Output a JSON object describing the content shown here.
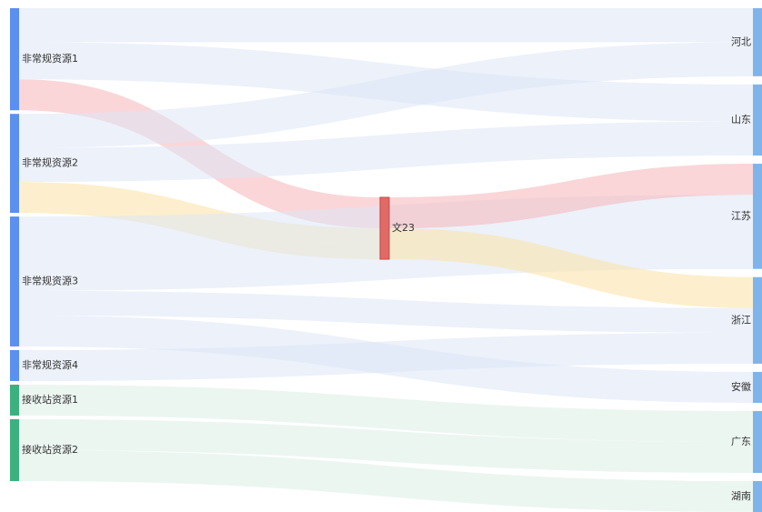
{
  "chart_data": {
    "type": "sankey",
    "nodes": [
      {
        "id": "s1",
        "label": "非常规资源1",
        "color": "#5b8ff0",
        "column": "left"
      },
      {
        "id": "s2",
        "label": "非常规资源2",
        "color": "#5b8ff0",
        "column": "left"
      },
      {
        "id": "s3",
        "label": "非常规资源3",
        "color": "#5b8ff0",
        "column": "left"
      },
      {
        "id": "s4",
        "label": "非常规资源4",
        "color": "#5b8ff0",
        "column": "left"
      },
      {
        "id": "j1",
        "label": "接收站资源1",
        "color": "#3db07f",
        "column": "left"
      },
      {
        "id": "j2",
        "label": "接收站资源2",
        "color": "#3db07f",
        "column": "left"
      },
      {
        "id": "w23",
        "label": "文23",
        "color": "#e06a66",
        "column": "middle"
      },
      {
        "id": "hebei",
        "label": "河北",
        "color": "#7fb4ea",
        "column": "right"
      },
      {
        "id": "shandong",
        "label": "山东",
        "color": "#7fb4ea",
        "column": "right"
      },
      {
        "id": "jiangsu",
        "label": "江苏",
        "color": "#7fb4ea",
        "column": "right"
      },
      {
        "id": "zhejiang",
        "label": "浙江",
        "color": "#7fb4ea",
        "column": "right"
      },
      {
        "id": "anhui",
        "label": "安徽",
        "color": "#7fb4ea",
        "column": "right"
      },
      {
        "id": "guangdong",
        "label": "广东",
        "color": "#7fb4ea",
        "column": "right"
      },
      {
        "id": "hunan",
        "label": "湖南",
        "color": "#7fb4ea",
        "column": "right"
      }
    ],
    "links": [
      {
        "source": "s1",
        "target": "w23",
        "value": 1.0,
        "color": "#f5b5b8"
      },
      {
        "source": "s1",
        "target": "hebei",
        "value": 1.1,
        "color": "#dde6f5"
      },
      {
        "source": "s1",
        "target": "shandong",
        "value": 1.2,
        "color": "#dde6f5"
      },
      {
        "source": "s2",
        "target": "w23",
        "value": 1.0,
        "color": "#fbe1a4"
      },
      {
        "source": "s2",
        "target": "hebei",
        "value": 1.1,
        "color": "#dde6f5"
      },
      {
        "source": "s2",
        "target": "shandong",
        "value": 1.1,
        "color": "#dde6f5"
      },
      {
        "source": "s3",
        "target": "jiangsu",
        "value": 1.2,
        "color": "#dde6f5"
      },
      {
        "source": "s3",
        "target": "jiangsu",
        "value": 1.2,
        "color": "#dde6f5"
      },
      {
        "source": "s3",
        "target": "zhejiang",
        "value": 0.8,
        "color": "#dde6f5"
      },
      {
        "source": "s3",
        "target": "anhui",
        "value": 1.0,
        "color": "#dde6f5"
      },
      {
        "source": "s4",
        "target": "zhejiang",
        "value": 1.0,
        "color": "#dde6f5"
      },
      {
        "source": "j1",
        "target": "guangdong",
        "value": 1.0,
        "color": "#dcefe6"
      },
      {
        "source": "j2",
        "target": "guangdong",
        "value": 1.0,
        "color": "#dcefe6"
      },
      {
        "source": "j2",
        "target": "hunan",
        "value": 1.0,
        "color": "#dcefe6"
      },
      {
        "source": "w23",
        "target": "jiangsu",
        "value": 1.0,
        "color": "#f5b5b8"
      },
      {
        "source": "w23",
        "target": "zhejiang",
        "value": 1.0,
        "color": "#fbe1a4"
      }
    ]
  }
}
